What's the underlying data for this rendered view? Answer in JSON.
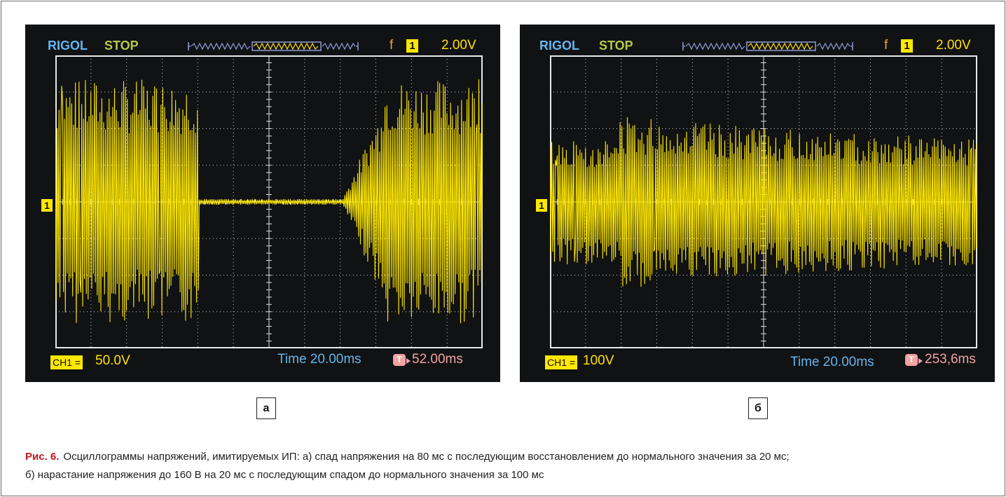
{
  "panels": [
    {
      "brand": "RIGOL",
      "run_state": "STOP",
      "trigger_mode": "f",
      "channel": "1",
      "volts_per_div": "2.00V",
      "ch_tag": "CH1 =",
      "ch_scale": "50.0V",
      "timebase": "Time 20.00ms",
      "trigger_badge": "T",
      "trigger_delay": "52.00ms",
      "channel_marker": "1",
      "label": "а"
    },
    {
      "brand": "RIGOL",
      "run_state": "STOP",
      "trigger_mode": "f",
      "channel": "1",
      "volts_per_div": "2.00V",
      "ch_tag": "CH1 =",
      "ch_scale": "100V",
      "timebase": "Time 20.00ms",
      "trigger_badge": "T",
      "trigger_delay": "253,6ms",
      "channel_marker": "1",
      "label": "б"
    }
  ],
  "caption": {
    "figure": "Рис. 6.",
    "line1": "Осциллограммы напряжений, имитируемых ИП: а) спад напряжения на 80 мс с последующим восстановлением до нормального значения за 20 мс;",
    "line2": "б) нарастание напряжения до 160 В на 20 мс с последующим спадом до нормального значения за 100 мс"
  },
  "colors": {
    "screen_bg": "#111214",
    "trace": "#ffe800",
    "brand": "#63b6f0",
    "run_state": "#b6c84a",
    "timebase": "#66b4ea",
    "trigger": "#f2a3a3",
    "caption_figure": "#c4151c"
  }
}
